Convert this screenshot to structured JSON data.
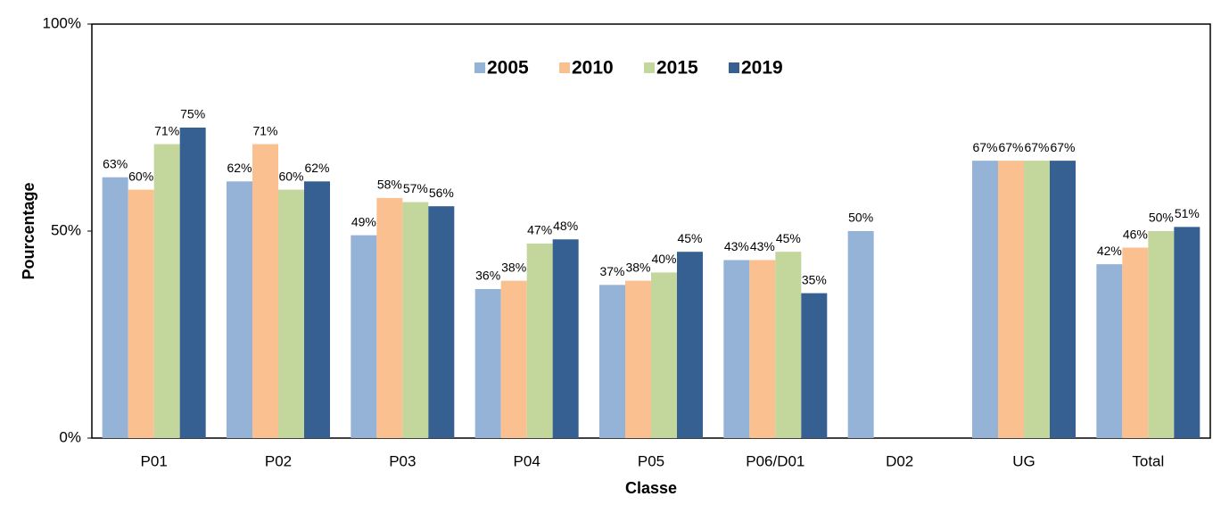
{
  "chart_data": {
    "type": "bar",
    "x_label": "Classe",
    "y_label": "Pourcentage",
    "categories": [
      "P01",
      "P02",
      "P03",
      "P04",
      "P05",
      "P06/D01",
      "D02",
      "UG",
      "Total"
    ],
    "series": [
      {
        "name": "2005",
        "color": "#95b3d7",
        "values": [
          63,
          62,
          49,
          36,
          37,
          43,
          50,
          67,
          42
        ],
        "value_labels": [
          "63%",
          "62%",
          "49%",
          "36%",
          "37%",
          "43%",
          "50%",
          "67%",
          "42%"
        ]
      },
      {
        "name": "2010",
        "color": "#fac090",
        "values": [
          60,
          71,
          58,
          38,
          38,
          43,
          null,
          67,
          46
        ],
        "value_labels": [
          "60%",
          "71%",
          "58%",
          "38%",
          "38%",
          "43%",
          null,
          "67%",
          "46%"
        ]
      },
      {
        "name": "2015",
        "color": "#c3d69b",
        "values": [
          71,
          60,
          57,
          47,
          40,
          45,
          null,
          67,
          50
        ],
        "value_labels": [
          "71%",
          "60%",
          "57%",
          "47%",
          "40%",
          "45%",
          null,
          "67%",
          "50%"
        ]
      },
      {
        "name": "2019",
        "color": "#366092",
        "values": [
          75,
          62,
          56,
          48,
          45,
          35,
          null,
          67,
          51
        ],
        "value_labels": [
          "75%",
          "62%",
          "56%",
          "48%",
          "45%",
          "35%",
          null,
          "67%",
          "51%"
        ]
      }
    ],
    "ylim": [
      0,
      100
    ],
    "yticks": [
      {
        "value": 0,
        "label": "0%"
      },
      {
        "value": 50,
        "label": "50%"
      },
      {
        "value": 100,
        "label": "100%"
      }
    ],
    "legend": "top",
    "grid": false
  }
}
